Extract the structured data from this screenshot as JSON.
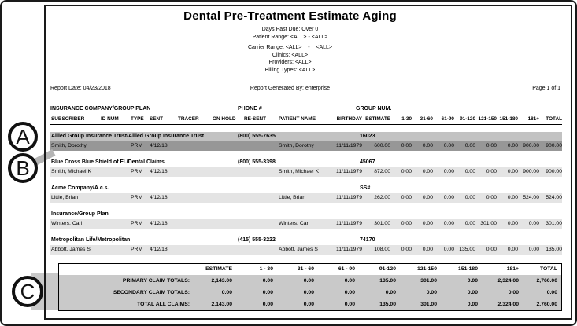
{
  "report": {
    "title": "Dental Pre-Treatment Estimate Aging",
    "filters": [
      "Days Past Due: Over 0",
      "Patient Range: <ALL> - <ALL>",
      "Carrier Range: <ALL>    -    <ALL>",
      "Clinics: <ALL>",
      "Providers: <ALL>",
      "Billing Types: <ALL>"
    ],
    "meta": {
      "report_date": "Report Date: 04/23/2018",
      "generated_by": "Report Generated By: enterprise",
      "page": "Page 1 of 1"
    }
  },
  "table": {
    "group_header": "INSURANCE COMPANY/GROUP PLAN",
    "phone_header": "PHONE #",
    "group_num_header": "GROUP NUM.",
    "columns": [
      "SUBSCRIBER",
      "ID NUM",
      "TYPE",
      "SENT",
      "TRACER",
      "ON HOLD",
      "RE-SENT",
      "PATIENT NAME",
      "BIRTHDAY",
      "ESTIMATE",
      "1-30",
      "31-60",
      "61-90",
      "91-120",
      "121-150",
      "151-180",
      "181+",
      "TOTAL"
    ],
    "numeric_from": 8,
    "sections": [
      {
        "company": "Allied Group Insurance Trust/Allied Group Insurance Trust",
        "phone": "(800) 555-7635",
        "group_num": "16023",
        "highlight": "dark",
        "rows": [
          {
            "subscriber": "Smith, Dorothy",
            "id_num": "",
            "type": "PRM",
            "sent": "4/12/18",
            "tracer": "",
            "on_hold": "",
            "re_sent": "",
            "patient": "Smith, Dorothy",
            "birthday": "11/11/1979",
            "estimate": "600.00",
            "aging": [
              "0.00",
              "0.00",
              "0.00",
              "0.00",
              "0.00",
              "0.00",
              "900.00"
            ],
            "total": "900.00"
          }
        ]
      },
      {
        "company": "Blue Cross Blue Shield of Fl./Dental Claims",
        "phone": "(800) 555-3398",
        "group_num": "45067",
        "highlight": "none",
        "rows": [
          {
            "subscriber": "Smith, Michael K",
            "id_num": "",
            "type": "PRM",
            "sent": "4/12/18",
            "tracer": "",
            "on_hold": "",
            "re_sent": "",
            "patient": "Smith, Michael K",
            "birthday": "11/11/1979",
            "estimate": "872.00",
            "aging": [
              "0.00",
              "0.00",
              "0.00",
              "0.00",
              "0.00",
              "0.00",
              "900.00"
            ],
            "total": "900.00"
          }
        ]
      },
      {
        "company": "Acme Company/A.c.s.",
        "phone": "",
        "group_num": "SS#",
        "highlight": "none",
        "rows": [
          {
            "subscriber": "Little, Brian",
            "id_num": "",
            "type": "PRM",
            "sent": "4/12/18",
            "tracer": "",
            "on_hold": "",
            "re_sent": "",
            "patient": "Little, Brian",
            "birthday": "11/11/1979",
            "estimate": "262.00",
            "aging": [
              "0.00",
              "0.00",
              "0.00",
              "0.00",
              "0.00",
              "0.00",
              "524.00"
            ],
            "total": "524.00"
          }
        ]
      },
      {
        "company": "Insurance/Group Plan",
        "phone": "",
        "group_num": "",
        "highlight": "none",
        "rows": [
          {
            "subscriber": "Winters, Carl",
            "id_num": "",
            "type": "PRM",
            "sent": "4/12/18",
            "tracer": "",
            "on_hold": "",
            "re_sent": "",
            "patient": "Winters, Carl",
            "birthday": "11/11/1979",
            "estimate": "301.00",
            "aging": [
              "0.00",
              "0.00",
              "0.00",
              "0.00",
              "301.00",
              "0.00",
              "0.00"
            ],
            "total": "301.00"
          }
        ]
      },
      {
        "company": "Metropolitan Life/Metropolitan",
        "phone": "(415) 555-3222",
        "group_num": "74170",
        "highlight": "none",
        "rows": [
          {
            "subscriber": "Abbott, James S",
            "id_num": "",
            "type": "PRM",
            "sent": "4/12/18",
            "tracer": "",
            "on_hold": "",
            "re_sent": "",
            "patient": "Abbott, James S",
            "birthday": "11/11/1979",
            "estimate": "108.00",
            "aging": [
              "0.00",
              "0.00",
              "0.00",
              "135.00",
              "0.00",
              "0.00",
              "0.00"
            ],
            "total": "135.00"
          }
        ]
      }
    ]
  },
  "totals": {
    "columns": [
      "ESTIMATE",
      "1 - 30",
      "31 - 60",
      "61 - 90",
      "91-120",
      "121-150",
      "151-180",
      "181+",
      "TOTAL"
    ],
    "rows": [
      {
        "label": "PRIMARY CLAIM TOTALS:",
        "values": [
          "2,143.00",
          "0.00",
          "0.00",
          "0.00",
          "135.00",
          "301.00",
          "0.00",
          "2,324.00",
          "2,760.00"
        ]
      },
      {
        "label": "SECONDARY CLAIM TOTALS:",
        "values": [
          "0.00",
          "0.00",
          "0.00",
          "0.00",
          "0.00",
          "0.00",
          "0.00",
          "0.00",
          "0.00"
        ]
      },
      {
        "label": "TOTAL ALL CLAIMS:",
        "values": [
          "2,143.00",
          "0.00",
          "0.00",
          "0.00",
          "135.00",
          "301.00",
          "0.00",
          "2,324.00",
          "2,760.00"
        ]
      }
    ]
  },
  "callouts": {
    "a": "A",
    "b": "B",
    "c": "C"
  },
  "colors": {
    "row_band": "#e4e4e4",
    "highlight_dark_row": "#979797",
    "highlight_mid_row": "#c2c2c2",
    "totals_band": "#c9c9c9",
    "callout_connector": "#b5b5b5",
    "border": "#1a1a1a"
  }
}
